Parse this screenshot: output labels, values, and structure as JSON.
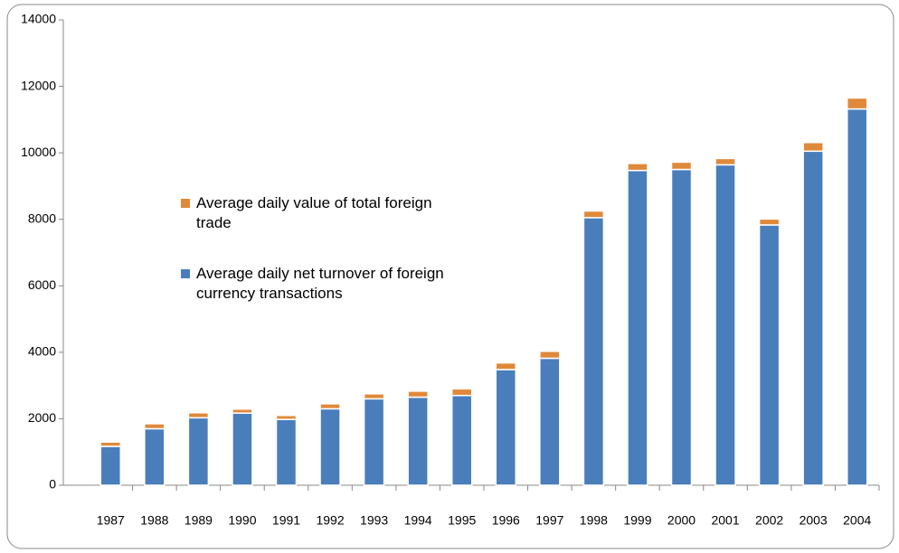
{
  "chart_data": {
    "type": "stacked_bar",
    "categories": [
      "1987",
      "1988",
      "1989",
      "1990",
      "1991",
      "1992",
      "1993",
      "1994",
      "1995",
      "1996",
      "1997",
      "1998",
      "1999",
      "2000",
      "2001",
      "2002",
      "2003",
      "2004"
    ],
    "series": [
      {
        "name": "Average daily net turnover of foreign currency transactions",
        "color": "#4a7ebb",
        "values": [
          1170,
          1700,
          2030,
          2170,
          1980,
          2300,
          2600,
          2650,
          2700,
          3480,
          3820,
          8050,
          9470,
          9500,
          9640,
          7830,
          10050,
          11320
        ]
      },
      {
        "name": "Average daily value of total foreign trade",
        "color": "#e0893a",
        "values": [
          130,
          150,
          150,
          120,
          120,
          150,
          150,
          180,
          200,
          200,
          210,
          200,
          210,
          220,
          190,
          180,
          260,
          330
        ]
      }
    ],
    "ylim": [
      0,
      14000
    ],
    "yticks": [
      0,
      2000,
      4000,
      6000,
      8000,
      10000,
      12000,
      14000
    ]
  }
}
